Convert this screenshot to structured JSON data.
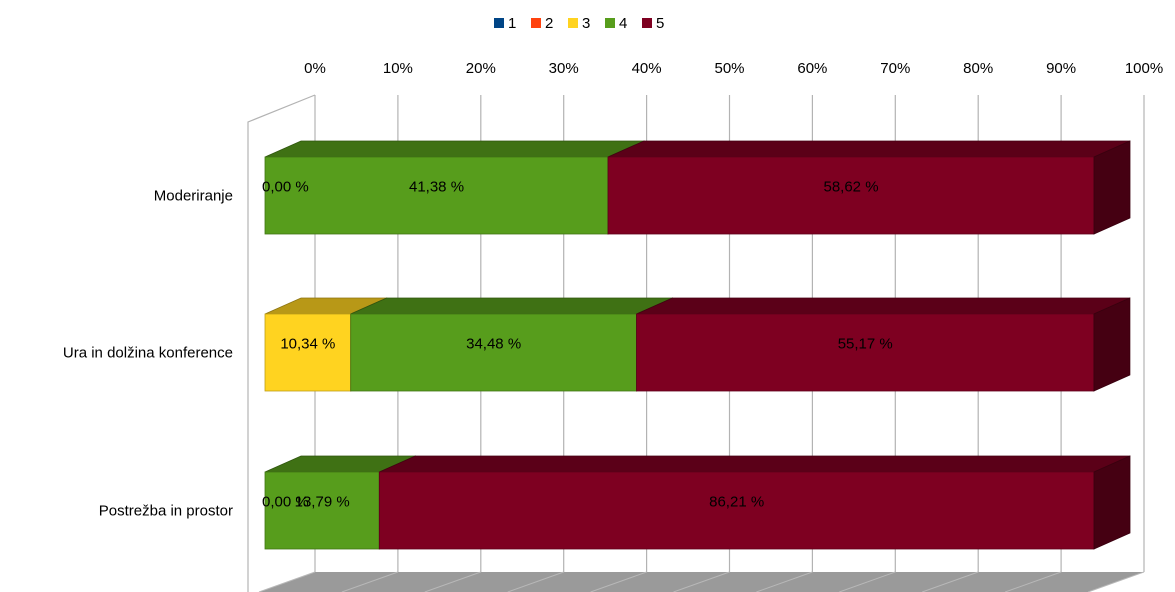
{
  "chart_data": {
    "type": "bar",
    "orientation": "horizontal",
    "stacked": "percent",
    "three_d": true,
    "categories": [
      "Moderiranje",
      "Ura in dolžina konference",
      "Postrežba in prostor"
    ],
    "series": [
      {
        "name": "1",
        "color": "#004586",
        "values": [
          0,
          0,
          0
        ]
      },
      {
        "name": "2",
        "color": "#ff420e",
        "values": [
          0,
          0,
          0
        ]
      },
      {
        "name": "3",
        "color": "#ffd320",
        "values": [
          0,
          10.34,
          0
        ]
      },
      {
        "name": "4",
        "color": "#579d1c",
        "values": [
          41.38,
          34.48,
          13.79
        ]
      },
      {
        "name": "5",
        "color": "#7e0021",
        "values": [
          58.62,
          55.17,
          86.21
        ]
      }
    ],
    "data_labels": [
      [
        {
          "series": "4",
          "text": "0,00 %",
          "at": "start"
        },
        {
          "series": "4",
          "text": "41,38 %"
        },
        {
          "series": "5",
          "text": "58,62 %"
        }
      ],
      [
        {
          "series": "3",
          "text": "10,34 %"
        },
        {
          "series": "4",
          "text": "34,48 %"
        },
        {
          "series": "5",
          "text": "55,17 %"
        }
      ],
      [
        {
          "series": "4",
          "text": "0,00 %",
          "at": "start"
        },
        {
          "series": "4",
          "text": "13,79 %"
        },
        {
          "series": "5",
          "text": "86,21 %"
        }
      ]
    ],
    "x_ticks": [
      "0%",
      "10%",
      "20%",
      "30%",
      "40%",
      "50%",
      "60%",
      "70%",
      "80%",
      "90%",
      "100%"
    ],
    "xlim": [
      0,
      100
    ],
    "grid": true,
    "legend_position": "top"
  }
}
